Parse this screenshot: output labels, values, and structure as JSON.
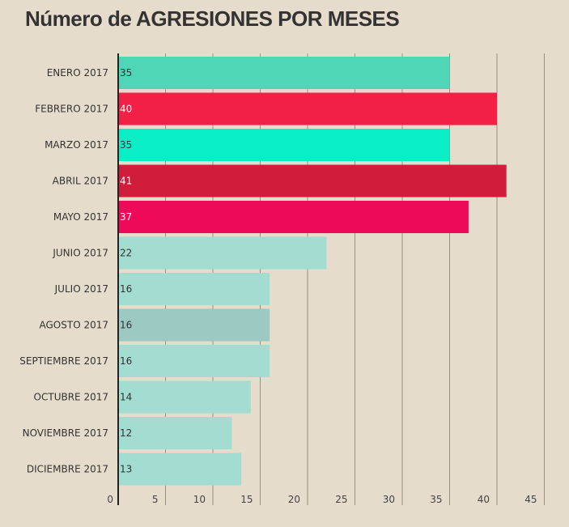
{
  "title": "Número de AGRESIONES POR MESES",
  "chart_data": {
    "type": "bar",
    "orientation": "horizontal",
    "title": "Número de AGRESIONES POR MESES",
    "xlabel": "",
    "ylabel": "",
    "categories": [
      "ENERO 2017",
      "FEBRERO 2017",
      "MARZO 2017",
      "ABRIL 2017",
      "MAYO 2017",
      "JUNIO 2017",
      "JULIO 2017",
      "AGOSTO 2017",
      "SEPTIEMBRE 2017",
      "OCTUBRE 2017",
      "NOVIEMBRE 2017",
      "DICIEMBRE 2017"
    ],
    "values": [
      35,
      40,
      35,
      41,
      37,
      22,
      16,
      16,
      16,
      14,
      12,
      13
    ],
    "bar_colors": [
      "#4fd6b7",
      "#f21f47",
      "#0aeec8",
      "#d21c3c",
      "#ee0a58",
      "#a3dcd0",
      "#a3dcd0",
      "#9cc9c1",
      "#a3dcd0",
      "#a3dcd0",
      "#a3dcd0",
      "#a3dcd0"
    ],
    "label_colors": [
      "#333333",
      "#ffffff",
      "#333333",
      "#ffffff",
      "#ffffff",
      "#333333",
      "#333333",
      "#333333",
      "#333333",
      "#333333",
      "#333333",
      "#333333"
    ],
    "xlim": [
      0,
      45
    ],
    "x_ticks": [
      0,
      5,
      10,
      15,
      20,
      25,
      30,
      35,
      40,
      45
    ],
    "grid": true,
    "legend": "none",
    "data_labels": "inside-left",
    "colors": {
      "background": "#e5dccc",
      "gridline": "#9a9080",
      "axis": "#222222",
      "text": "#333333"
    }
  }
}
